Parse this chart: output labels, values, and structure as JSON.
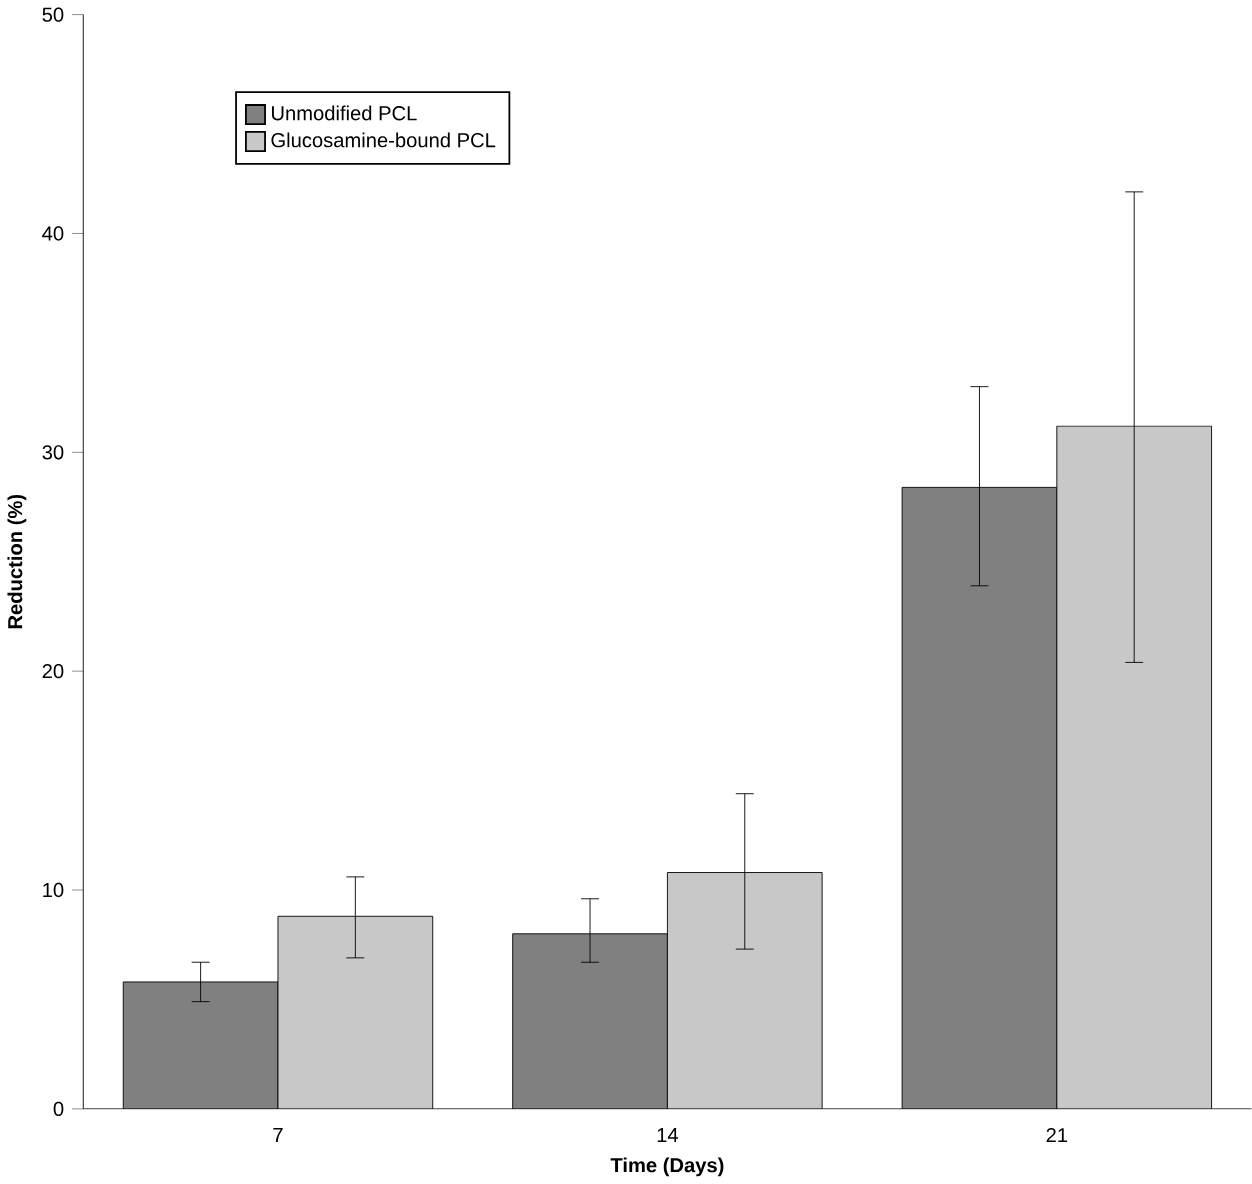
{
  "chart_data": {
    "type": "bar",
    "xlabel": "Time (Days)",
    "ylabel": "Reduction (%)",
    "categories": [
      "7",
      "14",
      "21"
    ],
    "series": [
      {
        "name": "Unmodified PCL",
        "color": "#808080",
        "values": [
          5.8,
          8.0,
          28.4
        ],
        "errors": [
          [
            4.9,
            6.7
          ],
          [
            6.7,
            9.6
          ],
          [
            23.9,
            33.0
          ]
        ]
      },
      {
        "name": "Glucosamine-bound PCL",
        "color": "#c8c8c8",
        "values": [
          8.8,
          10.8,
          31.2
        ],
        "errors": [
          [
            6.9,
            10.6
          ],
          [
            7.3,
            14.4
          ],
          [
            20.4,
            41.9
          ]
        ]
      }
    ],
    "ylim": [
      0,
      50
    ],
    "yticks": [
      0,
      10,
      20,
      30,
      40,
      50
    ],
    "grid": false,
    "legend": "top left"
  }
}
